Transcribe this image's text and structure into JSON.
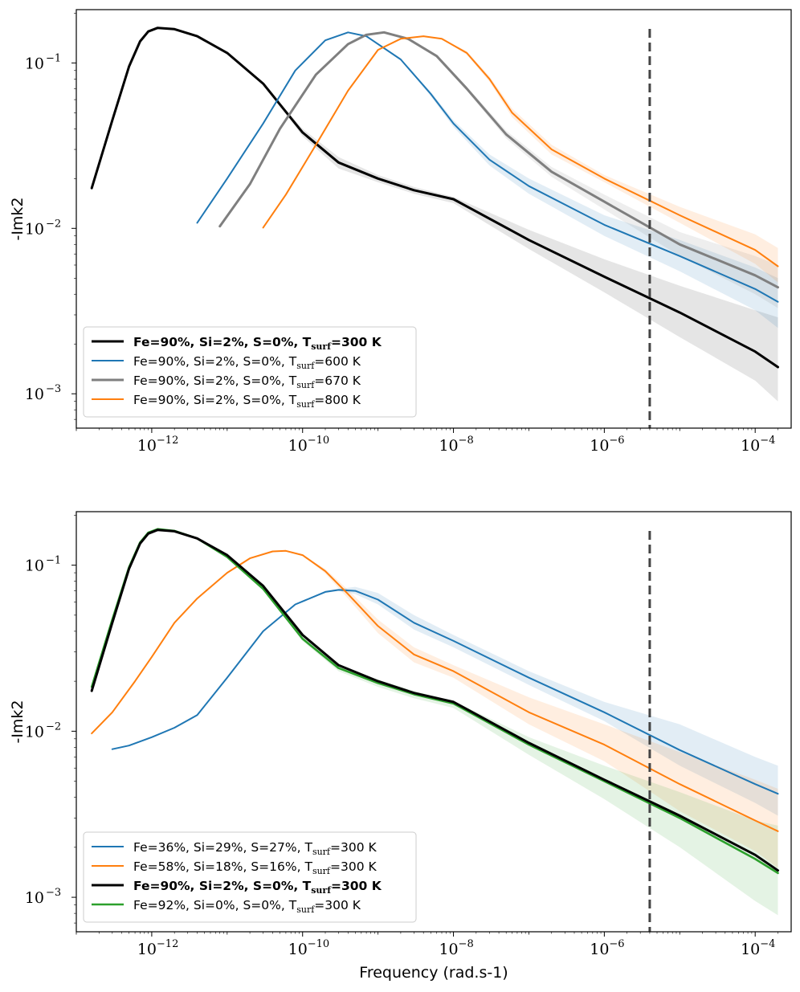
{
  "chart_data": [
    {
      "type": "line",
      "title": "",
      "xlabel": "",
      "ylabel": "-Imk2",
      "xscale": "log",
      "yscale": "log",
      "xlim": [
        1e-13,
        0.0003
      ],
      "ylim": [
        0.00062,
        0.21
      ],
      "xticks": [
        {
          "base": "10",
          "exp": "−12",
          "value": 1e-12
        },
        {
          "base": "10",
          "exp": "−10",
          "value": 1e-10
        },
        {
          "base": "10",
          "exp": "−8",
          "value": 1e-08
        },
        {
          "base": "10",
          "exp": "−6",
          "value": 1e-06
        },
        {
          "base": "10",
          "exp": "−4",
          "value": 0.0001
        }
      ],
      "yticks": [
        {
          "base": "10",
          "exp": "−3",
          "value": 0.001
        },
        {
          "base": "10",
          "exp": "−2",
          "value": 0.01
        },
        {
          "base": "10",
          "exp": "−1",
          "value": 0.1
        }
      ],
      "vline": {
        "x": 4e-06,
        "color": "#444444",
        "style": "dashed"
      },
      "legend_position": "lower-left",
      "series": [
        {
          "name": "Fe=90%, Si=2%, S=0%, T",
          "sub": "surf",
          "suffix": "=300 K",
          "bold": true,
          "color": "#000000",
          "width": 3,
          "x": [
            1.6e-13,
            3e-13,
            5e-13,
            7e-13,
            9e-13,
            1.2e-12,
            2e-12,
            4e-12,
            1e-11,
            3e-11,
            1e-10,
            3e-10,
            1e-09,
            3e-09,
            1e-08,
            1e-07,
            1e-06,
            1e-05,
            0.0001,
            0.0002
          ],
          "y": [
            0.0175,
            0.045,
            0.095,
            0.135,
            0.155,
            0.163,
            0.16,
            0.145,
            0.115,
            0.075,
            0.038,
            0.025,
            0.02,
            0.017,
            0.015,
            0.0085,
            0.0051,
            0.0031,
            0.0018,
            0.00145
          ],
          "band_hi": [
            0.0175,
            0.045,
            0.095,
            0.135,
            0.155,
            0.163,
            0.16,
            0.145,
            0.115,
            0.075,
            0.04,
            0.027,
            0.021,
            0.0178,
            0.0155,
            0.0098,
            0.0065,
            0.0045,
            0.0032,
            0.0029
          ],
          "band_lo": [
            0.0175,
            0.045,
            0.095,
            0.135,
            0.155,
            0.163,
            0.16,
            0.145,
            0.115,
            0.075,
            0.036,
            0.023,
            0.019,
            0.0162,
            0.0142,
            0.0075,
            0.0041,
            0.0022,
            0.0012,
            0.0009
          ]
        },
        {
          "name": "Fe=90%, Si=2%, S=0%, T",
          "sub": "surf",
          "suffix": "=600 K",
          "bold": false,
          "color": "#1f77b4",
          "width": 2,
          "x": [
            4e-12,
            1e-11,
            3e-11,
            8e-11,
            2e-10,
            4e-10,
            7e-10,
            2e-09,
            5e-09,
            1e-08,
            3e-08,
            1e-07,
            1e-06,
            1e-05,
            0.0001,
            0.0002
          ],
          "y": [
            0.0108,
            0.02,
            0.043,
            0.09,
            0.137,
            0.153,
            0.145,
            0.105,
            0.065,
            0.043,
            0.026,
            0.018,
            0.0105,
            0.0068,
            0.0043,
            0.0036
          ],
          "band_hi": [
            0.0108,
            0.02,
            0.043,
            0.09,
            0.137,
            0.153,
            0.145,
            0.105,
            0.067,
            0.045,
            0.028,
            0.02,
            0.012,
            0.0085,
            0.0058,
            0.005
          ],
          "band_lo": [
            0.0108,
            0.02,
            0.043,
            0.09,
            0.137,
            0.153,
            0.145,
            0.105,
            0.063,
            0.041,
            0.024,
            0.0162,
            0.009,
            0.0055,
            0.0032,
            0.0025
          ]
        },
        {
          "name": "Fe=90%, Si=2%, S=0%, T",
          "sub": "surf",
          "suffix": "=670 K",
          "bold": false,
          "color": "#7f7f7f",
          "width": 3,
          "x": [
            8e-12,
            2e-11,
            5e-11,
            1.5e-10,
            4e-10,
            7e-10,
            1.2e-09,
            2.5e-09,
            6e-09,
            1.5e-08,
            5e-08,
            2e-07,
            1e-06,
            1e-05,
            0.0001,
            0.0002
          ],
          "y": [
            0.0103,
            0.0185,
            0.04,
            0.085,
            0.13,
            0.148,
            0.153,
            0.14,
            0.11,
            0.07,
            0.037,
            0.022,
            0.0145,
            0.008,
            0.0052,
            0.0044
          ],
          "band_hi": [
            0.0103,
            0.0185,
            0.04,
            0.085,
            0.13,
            0.148,
            0.153,
            0.14,
            0.112,
            0.072,
            0.039,
            0.0235,
            0.016,
            0.0095,
            0.0068,
            0.006
          ],
          "band_lo": [
            0.0103,
            0.0185,
            0.04,
            0.085,
            0.13,
            0.148,
            0.153,
            0.14,
            0.108,
            0.068,
            0.035,
            0.0205,
            0.013,
            0.0068,
            0.004,
            0.0033
          ]
        },
        {
          "name": "Fe=90%, Si=2%, S=0%, T",
          "sub": "surf",
          "suffix": "=800 K",
          "bold": false,
          "color": "#ff7f0e",
          "width": 2,
          "x": [
            3e-11,
            6e-11,
            1.5e-10,
            4e-10,
            1e-09,
            2e-09,
            4e-09,
            7e-09,
            1.5e-08,
            3e-08,
            6e-08,
            2e-07,
            1e-06,
            1e-05,
            0.0001,
            0.0002
          ],
          "y": [
            0.0101,
            0.016,
            0.032,
            0.068,
            0.12,
            0.14,
            0.145,
            0.14,
            0.115,
            0.08,
            0.05,
            0.03,
            0.02,
            0.012,
            0.0074,
            0.0059
          ],
          "band_hi": [
            0.0101,
            0.016,
            0.032,
            0.068,
            0.12,
            0.14,
            0.145,
            0.14,
            0.118,
            0.083,
            0.053,
            0.032,
            0.021,
            0.0135,
            0.0092,
            0.0076
          ],
          "band_lo": [
            0.0101,
            0.016,
            0.032,
            0.068,
            0.12,
            0.14,
            0.145,
            0.14,
            0.112,
            0.077,
            0.047,
            0.028,
            0.019,
            0.0108,
            0.0061,
            0.0047
          ]
        }
      ]
    },
    {
      "type": "line",
      "title": "",
      "xlabel": "Frequency (rad.s-1)",
      "ylabel": "-Imk2",
      "xscale": "log",
      "yscale": "log",
      "xlim": [
        1e-13,
        0.0003
      ],
      "ylim": [
        0.00062,
        0.21
      ],
      "xticks": [
        {
          "base": "10",
          "exp": "−12",
          "value": 1e-12
        },
        {
          "base": "10",
          "exp": "−10",
          "value": 1e-10
        },
        {
          "base": "10",
          "exp": "−8",
          "value": 1e-08
        },
        {
          "base": "10",
          "exp": "−6",
          "value": 1e-06
        },
        {
          "base": "10",
          "exp": "−4",
          "value": 0.0001
        }
      ],
      "yticks": [
        {
          "base": "10",
          "exp": "−3",
          "value": 0.001
        },
        {
          "base": "10",
          "exp": "−2",
          "value": 0.01
        },
        {
          "base": "10",
          "exp": "−1",
          "value": 0.1
        }
      ],
      "vline": {
        "x": 4e-06,
        "color": "#444444",
        "style": "dashed"
      },
      "legend_position": "lower-left",
      "series": [
        {
          "name": "Fe=36%, Si=29%, S=27%, T",
          "sub": "surf",
          "suffix": "=300 K",
          "bold": false,
          "color": "#1f77b4",
          "width": 2,
          "x": [
            3e-13,
            5e-13,
            1e-12,
            2e-12,
            4e-12,
            1e-11,
            3e-11,
            8e-11,
            2e-10,
            3e-10,
            5e-10,
            1e-09,
            3e-09,
            1e-08,
            1e-07,
            1e-06,
            1e-05,
            0.0001,
            0.0002
          ],
          "y": [
            0.0078,
            0.0082,
            0.0092,
            0.0105,
            0.0125,
            0.021,
            0.04,
            0.058,
            0.069,
            0.071,
            0.07,
            0.062,
            0.045,
            0.035,
            0.021,
            0.013,
            0.0077,
            0.0048,
            0.0042
          ],
          "band_hi": [
            0.0078,
            0.0082,
            0.0092,
            0.0105,
            0.0125,
            0.021,
            0.04,
            0.058,
            0.07,
            0.072,
            0.074,
            0.068,
            0.05,
            0.038,
            0.023,
            0.015,
            0.011,
            0.007,
            0.0062
          ],
          "band_lo": [
            0.0078,
            0.0082,
            0.0092,
            0.0105,
            0.0125,
            0.021,
            0.04,
            0.058,
            0.068,
            0.07,
            0.067,
            0.058,
            0.041,
            0.032,
            0.019,
            0.0115,
            0.0062,
            0.0037,
            0.0031
          ]
        },
        {
          "name": "Fe=58%, Si=18%, S=16%, T",
          "sub": "surf",
          "suffix": "=300 K",
          "bold": false,
          "color": "#ff7f0e",
          "width": 2,
          "x": [
            1.6e-13,
            3e-13,
            6e-13,
            1e-12,
            2e-12,
            4e-12,
            1e-11,
            2e-11,
            4e-11,
            6e-11,
            1e-10,
            2e-10,
            4e-10,
            1e-09,
            3e-09,
            1e-08,
            1e-07,
            1e-06,
            1e-05,
            0.0001,
            0.0002
          ],
          "y": [
            0.0097,
            0.013,
            0.02,
            0.028,
            0.045,
            0.063,
            0.09,
            0.11,
            0.121,
            0.122,
            0.115,
            0.092,
            0.067,
            0.043,
            0.029,
            0.023,
            0.013,
            0.0083,
            0.0048,
            0.0029,
            0.0025
          ],
          "band_hi": [
            0.0097,
            0.013,
            0.02,
            0.028,
            0.045,
            0.063,
            0.09,
            0.11,
            0.121,
            0.122,
            0.115,
            0.095,
            0.071,
            0.047,
            0.032,
            0.025,
            0.016,
            0.011,
            0.0075,
            0.0051,
            0.0045
          ],
          "band_lo": [
            0.0097,
            0.013,
            0.02,
            0.028,
            0.045,
            0.063,
            0.09,
            0.11,
            0.121,
            0.122,
            0.115,
            0.089,
            0.063,
            0.039,
            0.026,
            0.021,
            0.011,
            0.0066,
            0.0033,
            0.0019,
            0.0015
          ]
        },
        {
          "name": "Fe=92%, Si=0%, S=0%, T",
          "sub": "surf",
          "suffix": "=300 K",
          "bold": false,
          "legend_order": 4,
          "color": "#2ca02c",
          "width": 2.6,
          "x": [
            1.6e-13,
            3e-13,
            5e-13,
            7e-13,
            9e-13,
            1.2e-12,
            2e-12,
            4e-12,
            1e-11,
            3e-11,
            1e-10,
            3e-10,
            1e-09,
            3e-09,
            1e-08,
            1e-07,
            1e-06,
            1e-05,
            0.0001,
            0.0002
          ],
          "y": [
            0.0185,
            0.047,
            0.097,
            0.137,
            0.157,
            0.165,
            0.161,
            0.145,
            0.112,
            0.072,
            0.036,
            0.024,
            0.0195,
            0.0167,
            0.0147,
            0.0083,
            0.005,
            0.003,
            0.0017,
            0.0014
          ],
          "band_hi": [
            0.0185,
            0.047,
            0.097,
            0.137,
            0.157,
            0.165,
            0.161,
            0.145,
            0.112,
            0.072,
            0.037,
            0.025,
            0.0205,
            0.0175,
            0.0152,
            0.0092,
            0.0062,
            0.0043,
            0.0029,
            0.0027
          ],
          "band_lo": [
            0.0185,
            0.047,
            0.097,
            0.137,
            0.157,
            0.165,
            0.161,
            0.145,
            0.112,
            0.072,
            0.035,
            0.023,
            0.0185,
            0.0158,
            0.0138,
            0.0072,
            0.0039,
            0.002,
            0.00095,
            0.00078
          ]
        },
        {
          "name": "Fe=90%, Si=2%, S=0%, T",
          "sub": "surf",
          "suffix": "=300 K",
          "bold": true,
          "legend_order": 3,
          "color": "#000000",
          "width": 3,
          "x": [
            1.6e-13,
            3e-13,
            5e-13,
            7e-13,
            9e-13,
            1.2e-12,
            2e-12,
            4e-12,
            1e-11,
            3e-11,
            1e-10,
            3e-10,
            1e-09,
            3e-09,
            1e-08,
            1e-07,
            1e-06,
            1e-05,
            0.0001,
            0.0002
          ],
          "y": [
            0.0175,
            0.045,
            0.095,
            0.135,
            0.155,
            0.163,
            0.16,
            0.145,
            0.115,
            0.075,
            0.038,
            0.025,
            0.02,
            0.017,
            0.015,
            0.0085,
            0.0051,
            0.0031,
            0.0018,
            0.00145
          ]
        }
      ]
    }
  ]
}
